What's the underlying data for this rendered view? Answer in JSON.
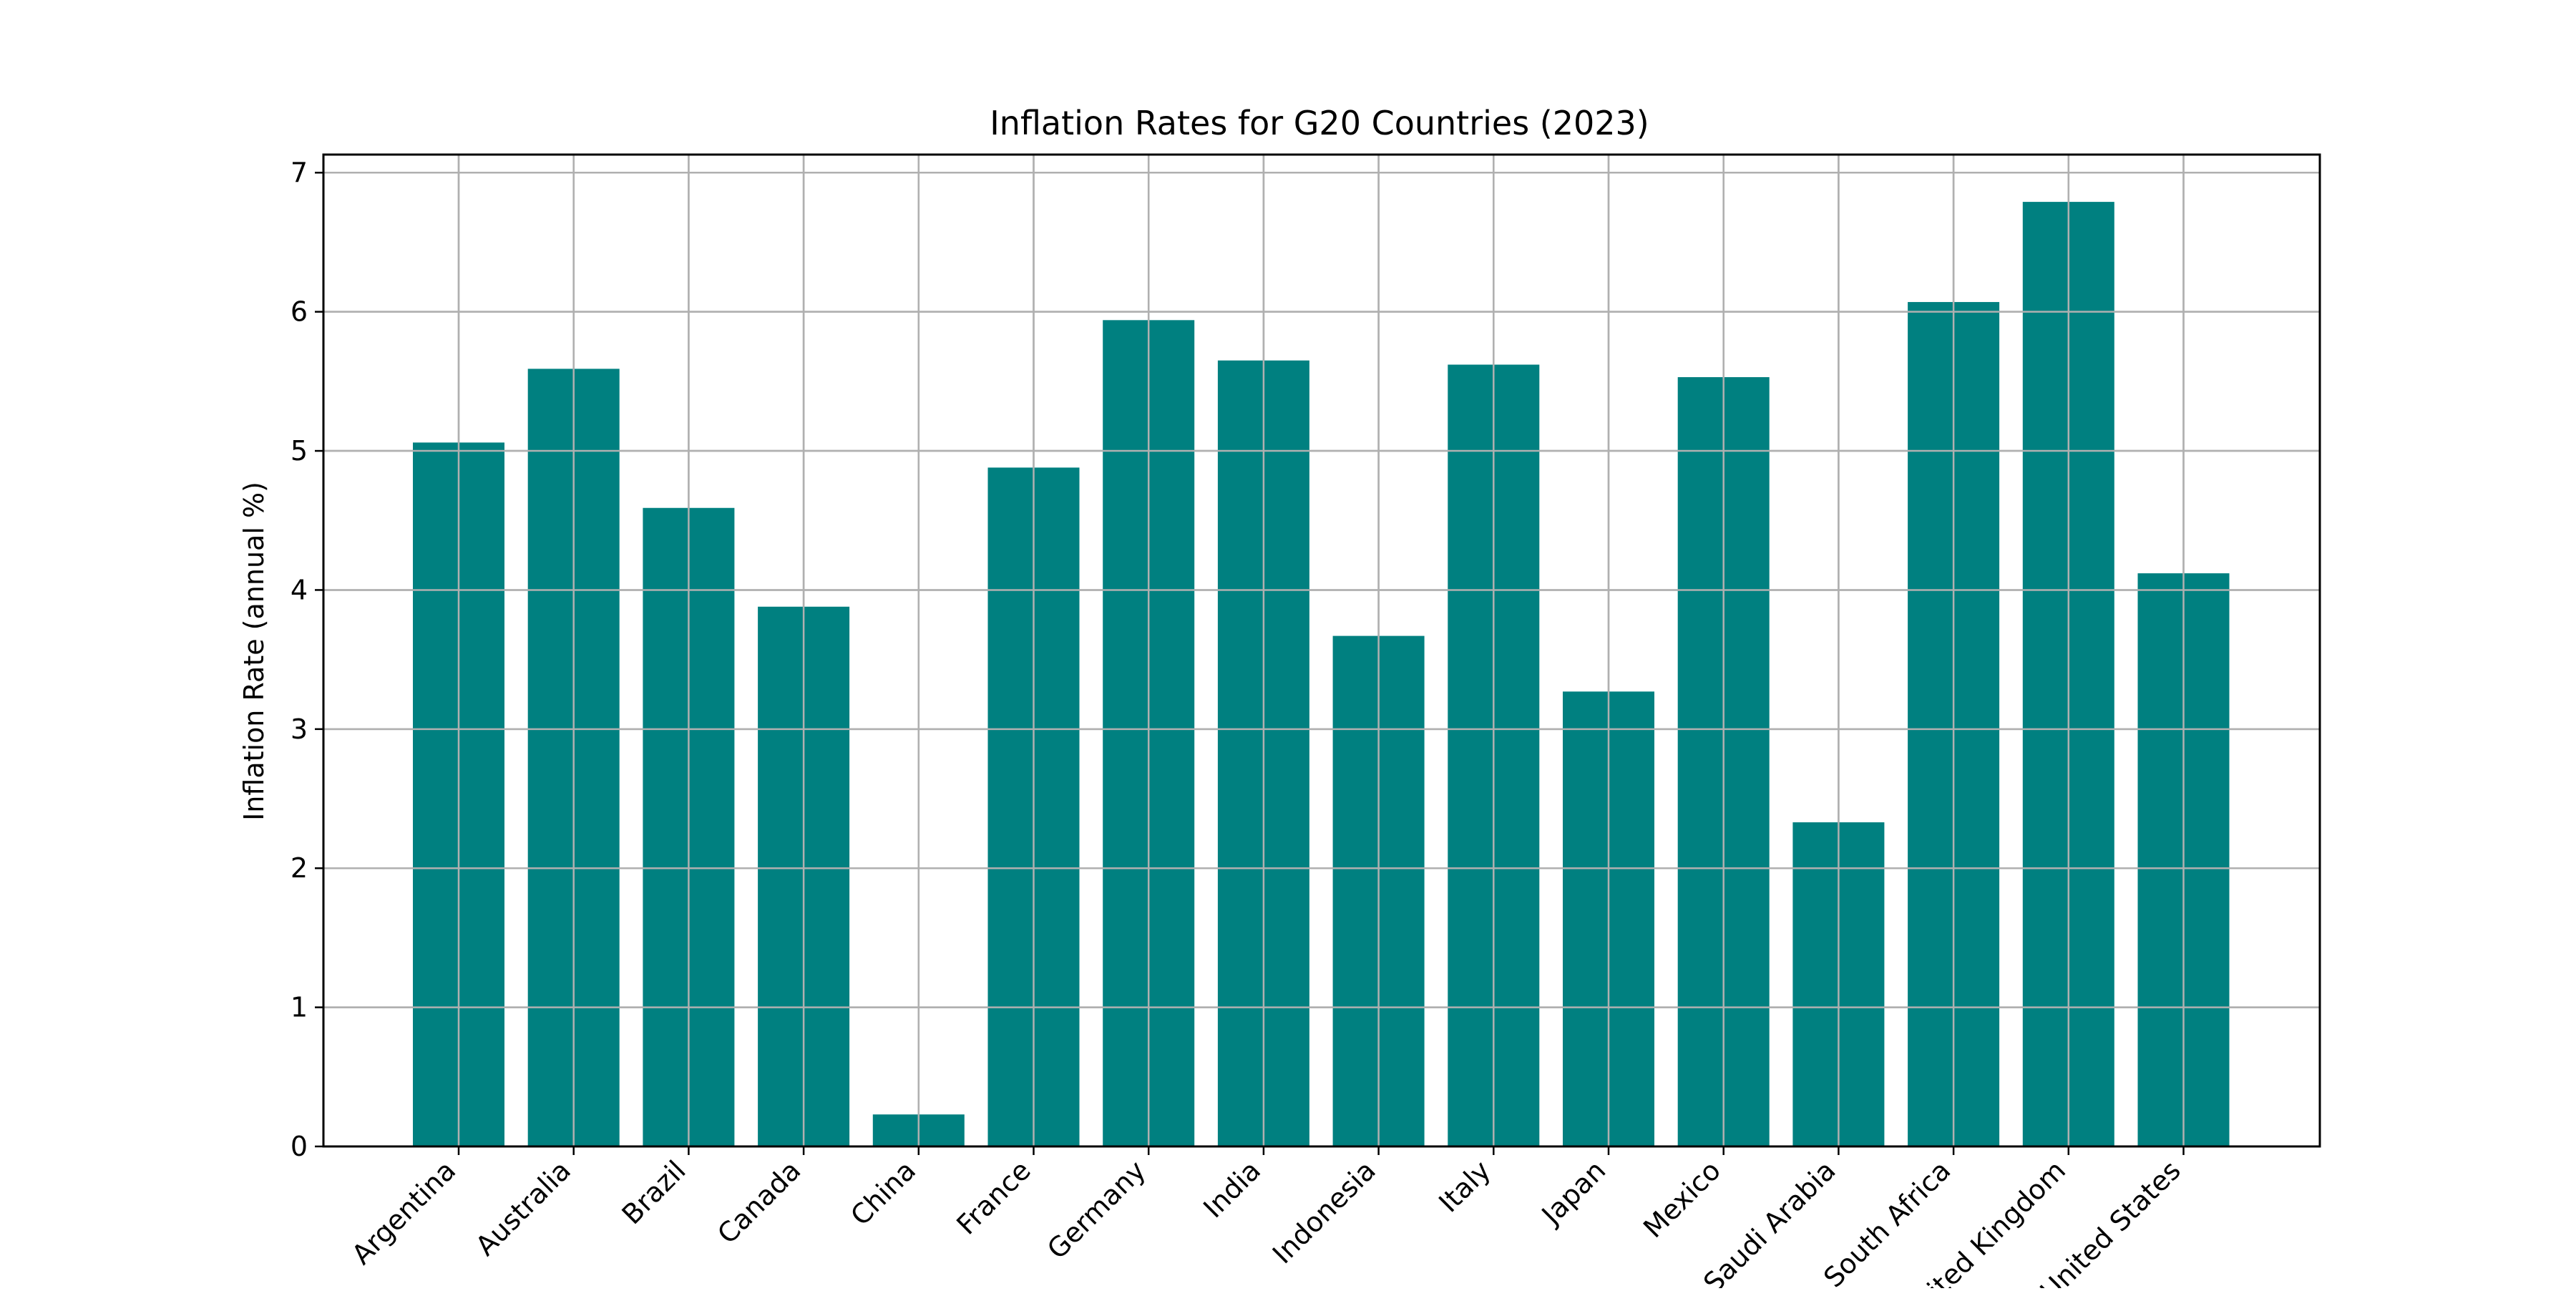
{
  "chart_data": {
    "type": "bar",
    "title": "Inflation Rates for G20 Countries (2023)",
    "xlabel": "",
    "ylabel": "Inflation Rate (annual %)",
    "categories": [
      "Argentina",
      "Australia",
      "Brazil",
      "Canada",
      "China",
      "France",
      "Germany",
      "India",
      "Indonesia",
      "Italy",
      "Japan",
      "Mexico",
      "Saudi Arabia",
      "South Africa",
      "United Kingdom",
      "United States"
    ],
    "values": [
      5.06,
      5.59,
      4.59,
      3.88,
      0.23,
      4.88,
      5.94,
      5.65,
      3.67,
      5.62,
      3.27,
      5.53,
      2.33,
      6.07,
      6.79,
      4.12
    ],
    "yticks": [
      "0",
      "1",
      "2",
      "3",
      "4",
      "5",
      "6",
      "7"
    ],
    "ylim": [
      0,
      7.13
    ],
    "grid": true,
    "bar_color": "#008080",
    "grid_color": "#b0b0b0"
  }
}
